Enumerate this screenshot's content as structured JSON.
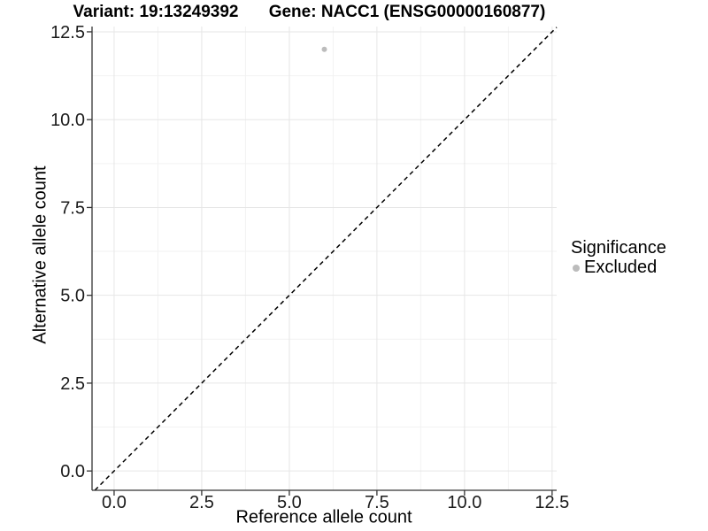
{
  "chart_data": {
    "type": "scatter",
    "title_variant": "Variant: 19:13249392",
    "title_gene": "Gene: NACC1 (ENSG00000160877)",
    "xlabel": "Reference allele count",
    "ylabel": "Alternative allele count",
    "xlim": [
      -0.63,
      12.63
    ],
    "ylim": [
      -0.55,
      12.65
    ],
    "x_ticks": [
      0.0,
      2.5,
      5.0,
      7.5,
      10.0,
      12.5
    ],
    "x_tick_labels": [
      "0.0",
      "2.5",
      "5.0",
      "7.5",
      "10.0",
      "12.5"
    ],
    "y_ticks": [
      0.0,
      2.5,
      5.0,
      7.5,
      10.0,
      12.5
    ],
    "y_tick_labels": [
      "0.0",
      "2.5",
      "5.0",
      "7.5",
      "10.0",
      "12.5"
    ],
    "grid": "major+minor",
    "series": [
      {
        "name": "Excluded",
        "color": "#bcbcbc",
        "points": [
          {
            "x": 6,
            "y": 12
          }
        ]
      }
    ],
    "identity_line": {
      "equation": "y = x",
      "style": "dashed",
      "color": "#000000"
    },
    "legend": {
      "title": "Significance",
      "position": "right",
      "items": [
        {
          "label": "Excluded",
          "color": "#bcbcbc",
          "marker": "circle"
        }
      ]
    }
  },
  "colors": {
    "background": "#ffffff",
    "grid_major": "#e6e6e6",
    "grid_minor": "#f2f2f2",
    "axis_line": "#333333",
    "tick_mark": "#333333",
    "tick_label": "#1a1a1a",
    "title": "#000000"
  }
}
